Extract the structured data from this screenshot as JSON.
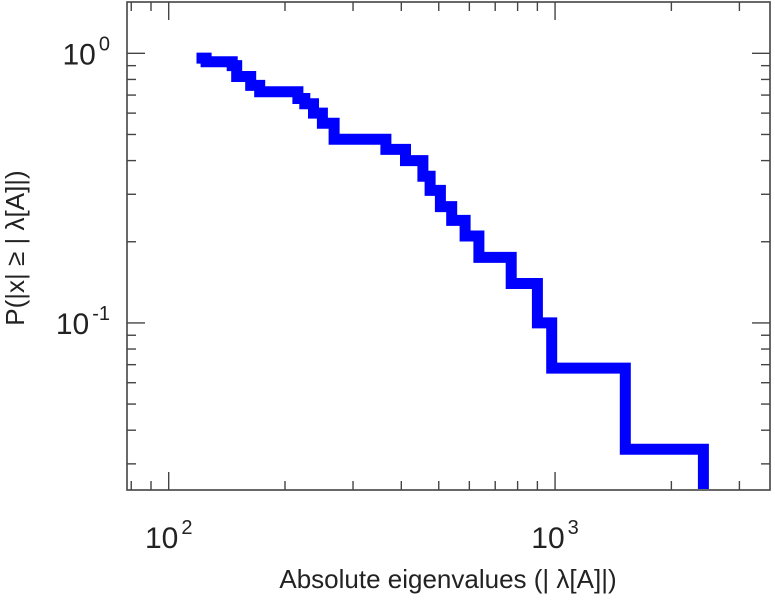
{
  "chart_data": {
    "type": "line",
    "subtype": "ccdf-step",
    "title": "",
    "xlabel": "Absolute eigenvalues (|     λ[A]|)",
    "ylabel": "P(|x|  ≥ | λ[A]|)",
    "xscale": "log",
    "yscale": "log",
    "xlim": [
      78,
      3600
    ],
    "ylim": [
      0.024,
      1.55
    ],
    "grid": false,
    "legend": "none",
    "series_color": "#0000ff",
    "x_ticks": [
      {
        "base": "10",
        "exp": "2",
        "value": 100
      },
      {
        "base": "10",
        "exp": "3",
        "value": 1000
      }
    ],
    "y_ticks": [
      {
        "base": "10",
        "exp": "0",
        "value": 1
      },
      {
        "base": "10",
        "exp": "-1",
        "value": 0.1
      }
    ],
    "series": [
      {
        "x": [
          118,
          125,
          135,
          146,
          150,
          163,
          172,
          188,
          216,
          225,
          237,
          250,
          268,
          300,
          340,
          365,
          410,
          455,
          475,
          505,
          540,
          585,
          635,
          690,
          770,
          900,
          980,
          1100,
          1250,
          1520,
          1750,
          2050,
          2420
        ],
        "y": [
          0.96,
          0.93,
          0.93,
          0.9,
          0.82,
          0.76,
          0.72,
          0.72,
          0.68,
          0.65,
          0.6,
          0.55,
          0.48,
          0.48,
          0.48,
          0.44,
          0.4,
          0.35,
          0.31,
          0.27,
          0.24,
          0.21,
          0.175,
          0.175,
          0.14,
          0.1,
          0.068,
          0.068,
          0.068,
          0.034,
          0.034,
          0.034,
          0.034
        ]
      }
    ]
  }
}
